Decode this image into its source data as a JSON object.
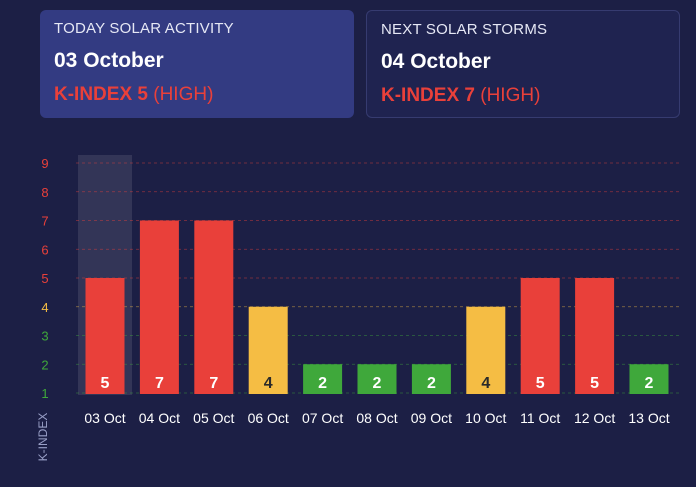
{
  "today": {
    "label": "TODAY SOLAR ACTIVITY",
    "date": "03 October",
    "kindex_text": "K-INDEX 5",
    "level": "(HIGH)"
  },
  "next": {
    "label": "NEXT SOLAR STORMS",
    "date": "04 October",
    "kindex_text": "K-INDEX 7",
    "level": "(HIGH)"
  },
  "colors": {
    "high": "#e9403a",
    "moderate": "#f5bd44",
    "low": "#3fa83b"
  },
  "chart_data": {
    "type": "bar",
    "categories": [
      "03 Oct",
      "04 Oct",
      "05 Oct",
      "06 Oct",
      "07 Oct",
      "08 Oct",
      "09 Oct",
      "10 Oct",
      "11 Oct",
      "12 Oct",
      "13 Oct"
    ],
    "values": [
      5,
      7,
      7,
      4,
      2,
      2,
      2,
      4,
      5,
      5,
      2
    ],
    "ylabel": "K-INDEX",
    "ylim": [
      1,
      9
    ],
    "yticks": [
      1,
      2,
      3,
      4,
      5,
      6,
      7,
      8,
      9
    ],
    "highlight_category": "03 Oct",
    "grid": true
  }
}
